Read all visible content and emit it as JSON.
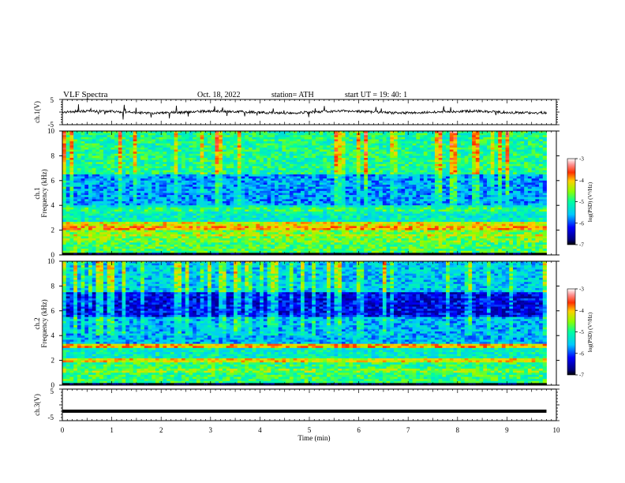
{
  "header": {
    "title": "VLF  Spectra",
    "date": "Oct. 18, 2022",
    "station": "station= ATH",
    "start": "start  UT  =    19: 40: 1"
  },
  "chart_data": [
    {
      "id": "ch1-waveform",
      "type": "line",
      "ylabel": "ch.1(V)",
      "ylim": [
        -5,
        5
      ],
      "yticks": [
        "5",
        "-5"
      ],
      "xlim": [
        0,
        10
      ],
      "series": [
        {
          "x_range_min": [
            0,
            9.8
          ],
          "mean": 0,
          "amplitude_typical": 1,
          "amplitude_spikes": 3
        }
      ]
    },
    {
      "id": "ch1-spectrogram",
      "type": "heatmap",
      "ylabel_lines": [
        "ch.1",
        "Frequency  (kHz)"
      ],
      "ylim": [
        0,
        10
      ],
      "yticks": [
        "0",
        "2",
        "4",
        "6",
        "8",
        "10"
      ],
      "xlim": [
        0,
        10
      ],
      "data_x_extent_min": 9.8,
      "colorbar": {
        "label": "log(PSD) (V²/Hz)",
        "range": [
          -7,
          -3
        ],
        "ticks": [
          "-3",
          "-4",
          "-5",
          "-6",
          "-7"
        ]
      },
      "bands": [
        {
          "freq_range_khz": [
            0,
            0.25
          ],
          "log_psd": -7
        },
        {
          "freq_range_khz": [
            0.25,
            1.0
          ],
          "log_psd": -4.8
        },
        {
          "freq_range_khz": [
            1.0,
            2.4
          ],
          "log_psd": -4.6
        },
        {
          "freq_range_khz": [
            2.4,
            4.0
          ],
          "log_psd": -5.2
        },
        {
          "freq_range_khz": [
            4.0,
            6.5
          ],
          "log_psd": -5.7
        },
        {
          "freq_range_khz": [
            6.5,
            10
          ],
          "log_psd": -5.0
        }
      ],
      "tones_khz": [
        {
          "f": 2.2,
          "log_psd": -3.9
        },
        {
          "f": 2.5,
          "log_psd": -4.2
        },
        {
          "f": 1.6,
          "log_psd": -4.3
        },
        {
          "f": 3.7,
          "log_psd": -4.9
        }
      ]
    },
    {
      "id": "ch2-spectrogram",
      "type": "heatmap",
      "ylabel_lines": [
        "ch.2",
        "Frequency  (kHz)"
      ],
      "ylim": [
        0,
        10
      ],
      "yticks": [
        "0",
        "2",
        "4",
        "6",
        "8",
        "10"
      ],
      "xlim": [
        0,
        10
      ],
      "data_x_extent_min": 9.8,
      "colorbar": {
        "label": "log(PSD) (V²/Hz)",
        "range": [
          -7,
          -3
        ],
        "ticks": [
          "-3",
          "-4",
          "-5",
          "-6",
          "-7"
        ]
      },
      "bands": [
        {
          "freq_range_khz": [
            0,
            0.2
          ],
          "log_psd": -7
        },
        {
          "freq_range_khz": [
            0.2,
            2.0
          ],
          "log_psd": -4.9
        },
        {
          "freq_range_khz": [
            2.0,
            3.4
          ],
          "log_psd": -5.2
        },
        {
          "freq_range_khz": [
            3.4,
            5.5
          ],
          "log_psd": -5.6
        },
        {
          "freq_range_khz": [
            5.5,
            7.5
          ],
          "log_psd": -6.3
        },
        {
          "freq_range_khz": [
            7.5,
            10
          ],
          "log_psd": -5.5
        }
      ],
      "tones_khz": [
        {
          "f": 3.2,
          "log_psd": -4.0
        },
        {
          "f": 2.0,
          "log_psd": -4.2
        },
        {
          "f": 1.2,
          "log_psd": -4.6
        }
      ]
    },
    {
      "id": "ch3-waveform",
      "type": "line",
      "ylabel": "ch.3(V)",
      "ylim": [
        -5,
        5
      ],
      "yticks": [
        "5",
        "-5"
      ],
      "xlim": [
        0,
        10
      ],
      "xticks": [
        "0",
        "1",
        "2",
        "3",
        "4",
        "5",
        "6",
        "7",
        "8",
        "9",
        "10"
      ],
      "xlabel": "Time  (min)",
      "series": [
        {
          "x_range_min": [
            0,
            9.8
          ],
          "constant_value": -2
        }
      ]
    }
  ]
}
